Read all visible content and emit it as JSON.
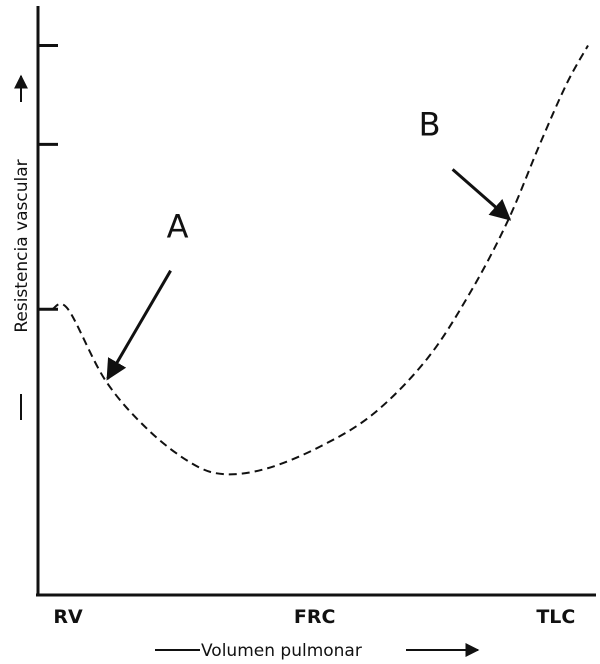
{
  "chart_data": {
    "type": "line",
    "title": "",
    "xlabel": "Volumen pulmonar",
    "ylabel": "Resistencia vascular",
    "x_tick_labels": [
      "RV",
      "FRC",
      "TLC"
    ],
    "series": [
      {
        "line_style": "dashed",
        "points": [
          [
            0.0,
            0.52
          ],
          [
            0.03,
            0.52
          ],
          [
            0.1,
            0.39
          ],
          [
            0.18,
            0.3
          ],
          [
            0.26,
            0.24
          ],
          [
            0.32,
            0.22
          ],
          [
            0.4,
            0.23
          ],
          [
            0.5,
            0.27
          ],
          [
            0.6,
            0.33
          ],
          [
            0.7,
            0.43
          ],
          [
            0.78,
            0.55
          ],
          [
            0.85,
            0.68
          ],
          [
            0.91,
            0.82
          ],
          [
            0.96,
            0.93
          ],
          [
            1.0,
            1.0
          ]
        ]
      }
    ],
    "y_ticks": [
      0.52,
      0.82,
      1.0
    ],
    "xlim": [
      0,
      1
    ],
    "ylim": [
      0,
      1.05
    ],
    "annotations": [
      {
        "text": "A",
        "target": [
          0.1,
          0.39
        ]
      },
      {
        "text": "B",
        "target": [
          0.85,
          0.68
        ]
      }
    ],
    "grid": false,
    "line_color": "#111111"
  }
}
